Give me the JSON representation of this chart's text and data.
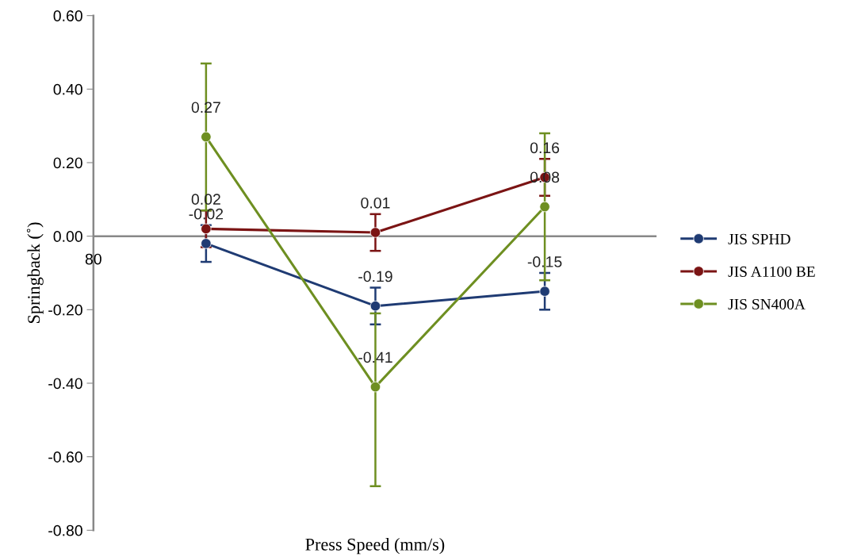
{
  "chart_data": {
    "type": "line",
    "xlabel": "Press Speed (mm/s)",
    "ylabel": "Springback (˚)",
    "categories": [
      null,
      null,
      null
    ],
    "series": [
      {
        "name": "JIS SPHD",
        "color": "#1f3b73",
        "values": [
          -0.02,
          -0.19,
          -0.15
        ],
        "errors": [
          0.05,
          0.05,
          0.05
        ]
      },
      {
        "name": "JIS A1100 BE",
        "color": "#7b1414",
        "values": [
          0.02,
          0.01,
          0.16
        ],
        "errors": [
          0.05,
          0.05,
          0.05
        ]
      },
      {
        "name": "JIS SN400A",
        "color": "#6e8f21",
        "values": [
          0.27,
          -0.41,
          0.08
        ],
        "errors": [
          0.2,
          [
            -0.68,
            -0.21
          ],
          0.2
        ]
      }
    ],
    "ylim": [
      -0.8,
      0.6
    ],
    "yticks": [
      {
        "value": -0.8,
        "label": "-0.80"
      },
      {
        "value": -0.6,
        "label": "-0.60"
      },
      {
        "value": -0.4,
        "label": "-0.40"
      },
      {
        "value": -0.2,
        "label": "-0.20"
      },
      {
        "value": 0,
        "label": "0.00"
      },
      {
        "value": 0.2,
        "label": "0.20"
      },
      {
        "value": 0.4,
        "label": "0.40"
      },
      {
        "value": 0.6,
        "label": "0.60"
      }
    ],
    "ref_lines": [
      {
        "axis": "y",
        "value": 0,
        "color": "#888888"
      }
    ],
    "annotations": [
      "80"
    ],
    "data_labels": true,
    "marker": "circle",
    "legend": "right",
    "grid": false
  }
}
